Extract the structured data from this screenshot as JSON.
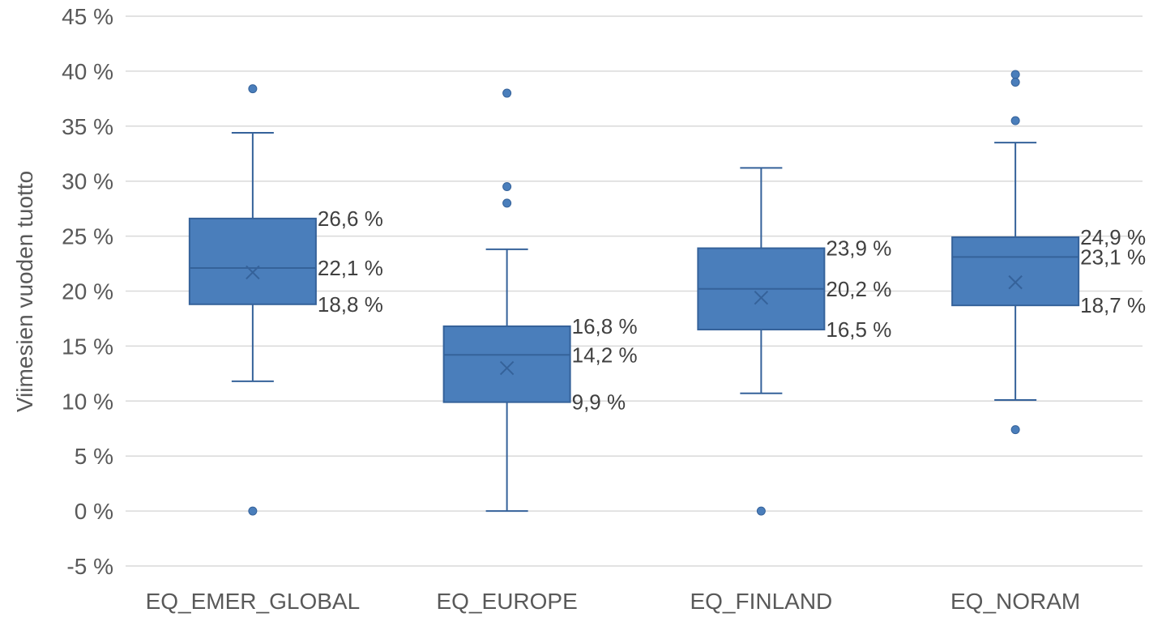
{
  "chart_data": {
    "type": "box",
    "ylabel": "Viimesien vuoden tuotto",
    "xlabel": "",
    "ylim": [
      -5,
      45
    ],
    "ytick_step": 5,
    "ytick_labels": [
      "-5 %",
      "0 %",
      "5 %",
      "10 %",
      "15 %",
      "20 %",
      "25 %",
      "30 %",
      "35 %",
      "40 %",
      "45 %"
    ],
    "grid": true,
    "colors": {
      "box": "#4a7ebb",
      "box_stroke": "#35629a",
      "grid": "#d9d9d9",
      "text": "#595959"
    },
    "categories": [
      "EQ_EMER_GLOBAL",
      "EQ_EUROPE",
      "EQ_FINLAND",
      "EQ_NORAM"
    ],
    "boxes": [
      {
        "min": 11.8,
        "q1": 18.8,
        "median": 22.1,
        "mean": 21.7,
        "q3": 26.6,
        "max": 34.4,
        "outliers": [
          38.4,
          0.0
        ],
        "labels": {
          "q3": "26,6 %",
          "median": "22,1 %",
          "q1": "18,8 %"
        }
      },
      {
        "min": 0.0,
        "q1": 9.9,
        "median": 14.2,
        "mean": 13.0,
        "q3": 16.8,
        "max": 23.8,
        "outliers": [
          38.0,
          29.5,
          28.0
        ],
        "labels": {
          "q3": "16,8 %",
          "median": "14,2 %",
          "q1": "9,9 %"
        }
      },
      {
        "min": 10.7,
        "q1": 16.5,
        "median": 20.2,
        "mean": 19.4,
        "q3": 23.9,
        "max": 31.2,
        "outliers": [
          0.0
        ],
        "labels": {
          "q3": "23,9 %",
          "median": "20,2 %",
          "q1": "16,5 %"
        }
      },
      {
        "min": 10.1,
        "q1": 18.7,
        "median": 23.1,
        "mean": 20.8,
        "q3": 24.9,
        "max": 33.5,
        "outliers": [
          39.7,
          39.0,
          35.5,
          7.4
        ],
        "labels": {
          "q3": "24,9 %",
          "median": "23,1 %",
          "q1": "18,7 %"
        }
      }
    ]
  }
}
